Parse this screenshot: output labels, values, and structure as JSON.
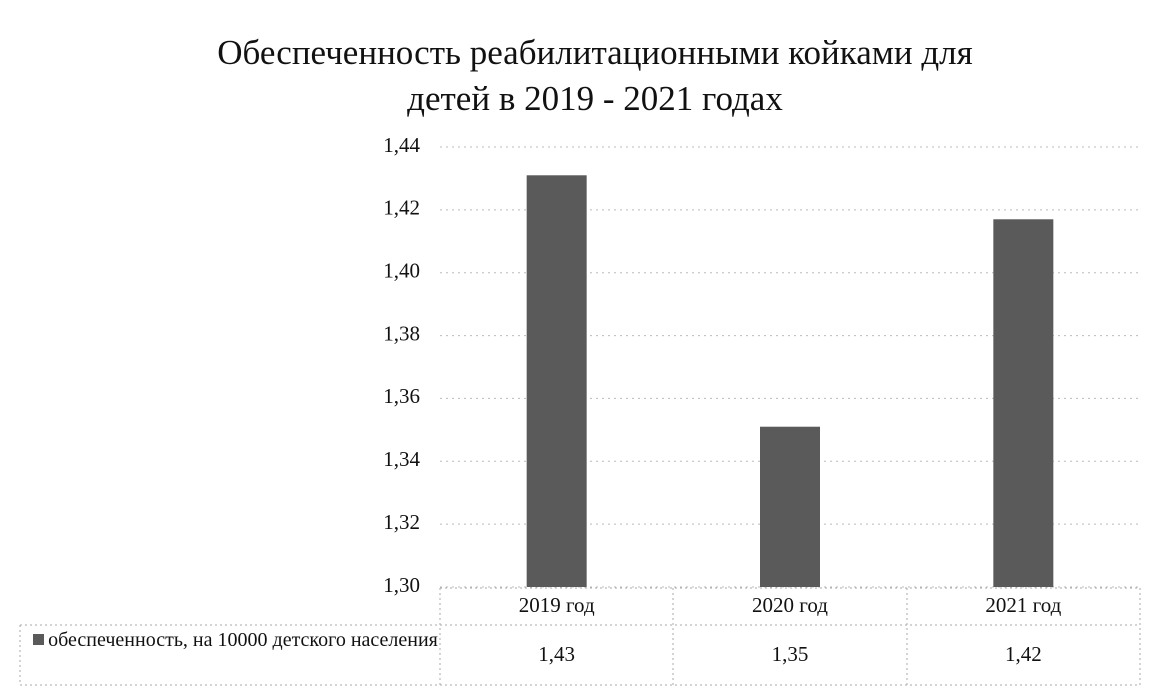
{
  "chart_data": {
    "type": "bar",
    "title": "Обеспеченность реабилитационными койками для детей в 2019 - 2021 годах",
    "categories": [
      "2019 год",
      "2020 год",
      "2021 год"
    ],
    "series": [
      {
        "name": "обеспеченность, на 10000 детского населения",
        "color": "#5a5a5a",
        "values": [
          1.431,
          1.351,
          1.417
        ],
        "value_labels": [
          "1,43",
          "1,35",
          "1,42"
        ]
      }
    ],
    "ylim": [
      1.3,
      1.44
    ],
    "yticks": [
      {
        "value": 1.3,
        "label": "1,30"
      },
      {
        "value": 1.32,
        "label": "1,32"
      },
      {
        "value": 1.34,
        "label": "1,34"
      },
      {
        "value": 1.36,
        "label": "1,36"
      },
      {
        "value": 1.38,
        "label": "1,38"
      },
      {
        "value": 1.4,
        "label": "1,40"
      },
      {
        "value": 1.42,
        "label": "1,42"
      },
      {
        "value": 1.44,
        "label": "1,44"
      }
    ],
    "grid": true
  }
}
